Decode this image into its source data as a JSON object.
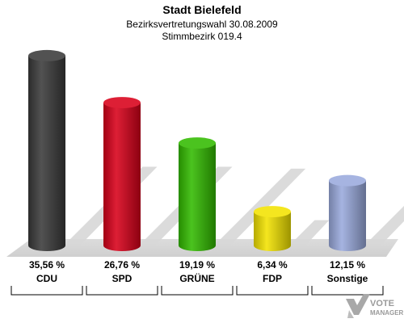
{
  "chart_data": {
    "type": "bar",
    "title": "Stadt Bielefeld",
    "subtitle_line1": "Bezirksvertretungswahl 30.08.2009",
    "subtitle_line2": "Stimmbezirk 019.4",
    "categories": [
      "CDU",
      "SPD",
      "GRÜNE",
      "FDP",
      "Sonstige"
    ],
    "values": [
      35.56,
      26.76,
      19.19,
      6.34,
      12.15
    ],
    "value_labels": [
      "35,56 %",
      "26,76 %",
      "19,19 %",
      "6,34 %",
      "12,15 %"
    ],
    "colors": [
      "#3a3a3a",
      "#d8001a",
      "#33bb00",
      "#f2e300",
      "#9aaadd"
    ],
    "ylim": [
      0,
      36
    ]
  },
  "watermark": {
    "line1": "VOTE",
    "line2": "MANAGER"
  }
}
